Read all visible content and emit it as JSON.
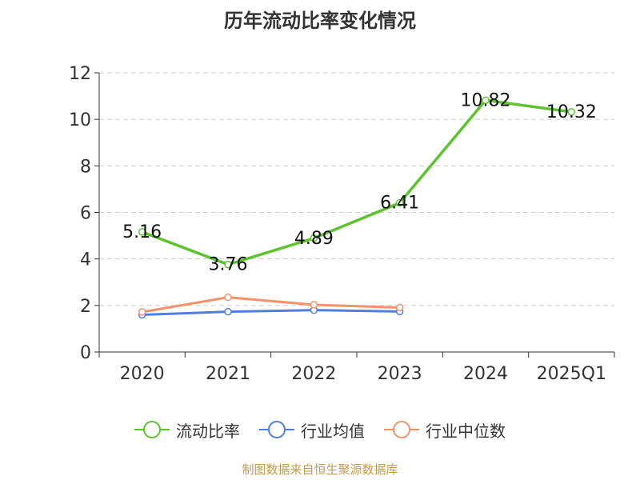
{
  "title": "历年流动比率变化情况",
  "source": "制图数据来自恒生聚源数据库",
  "colors": {
    "series": [
      "#5dc32f",
      "#4f7fe0",
      "#f4936a"
    ],
    "axis": "#333333",
    "grid": "#cccccc",
    "text": "#333333"
  },
  "chart_data": {
    "type": "line",
    "title": "历年流动比率变化情况",
    "categories": [
      "2020",
      "2021",
      "2022",
      "2023",
      "2024",
      "2025Q1"
    ],
    "ylim": [
      0,
      12
    ],
    "yticks": [
      0,
      2,
      4,
      6,
      8,
      10,
      12
    ],
    "grid": true,
    "legend_position": "bottom",
    "series": [
      {
        "name": "流动比率",
        "values": [
          5.16,
          3.76,
          4.89,
          6.41,
          10.82,
          10.32
        ],
        "labels": [
          "5.16",
          "3.76",
          "4.89",
          "6.41",
          "10.82",
          "10.32"
        ]
      },
      {
        "name": "行业均值",
        "values": [
          1.6,
          1.73,
          1.8,
          1.74,
          null,
          null
        ]
      },
      {
        "name": "行业中位数",
        "values": [
          1.72,
          2.35,
          2.03,
          1.91,
          null,
          null
        ]
      }
    ]
  }
}
